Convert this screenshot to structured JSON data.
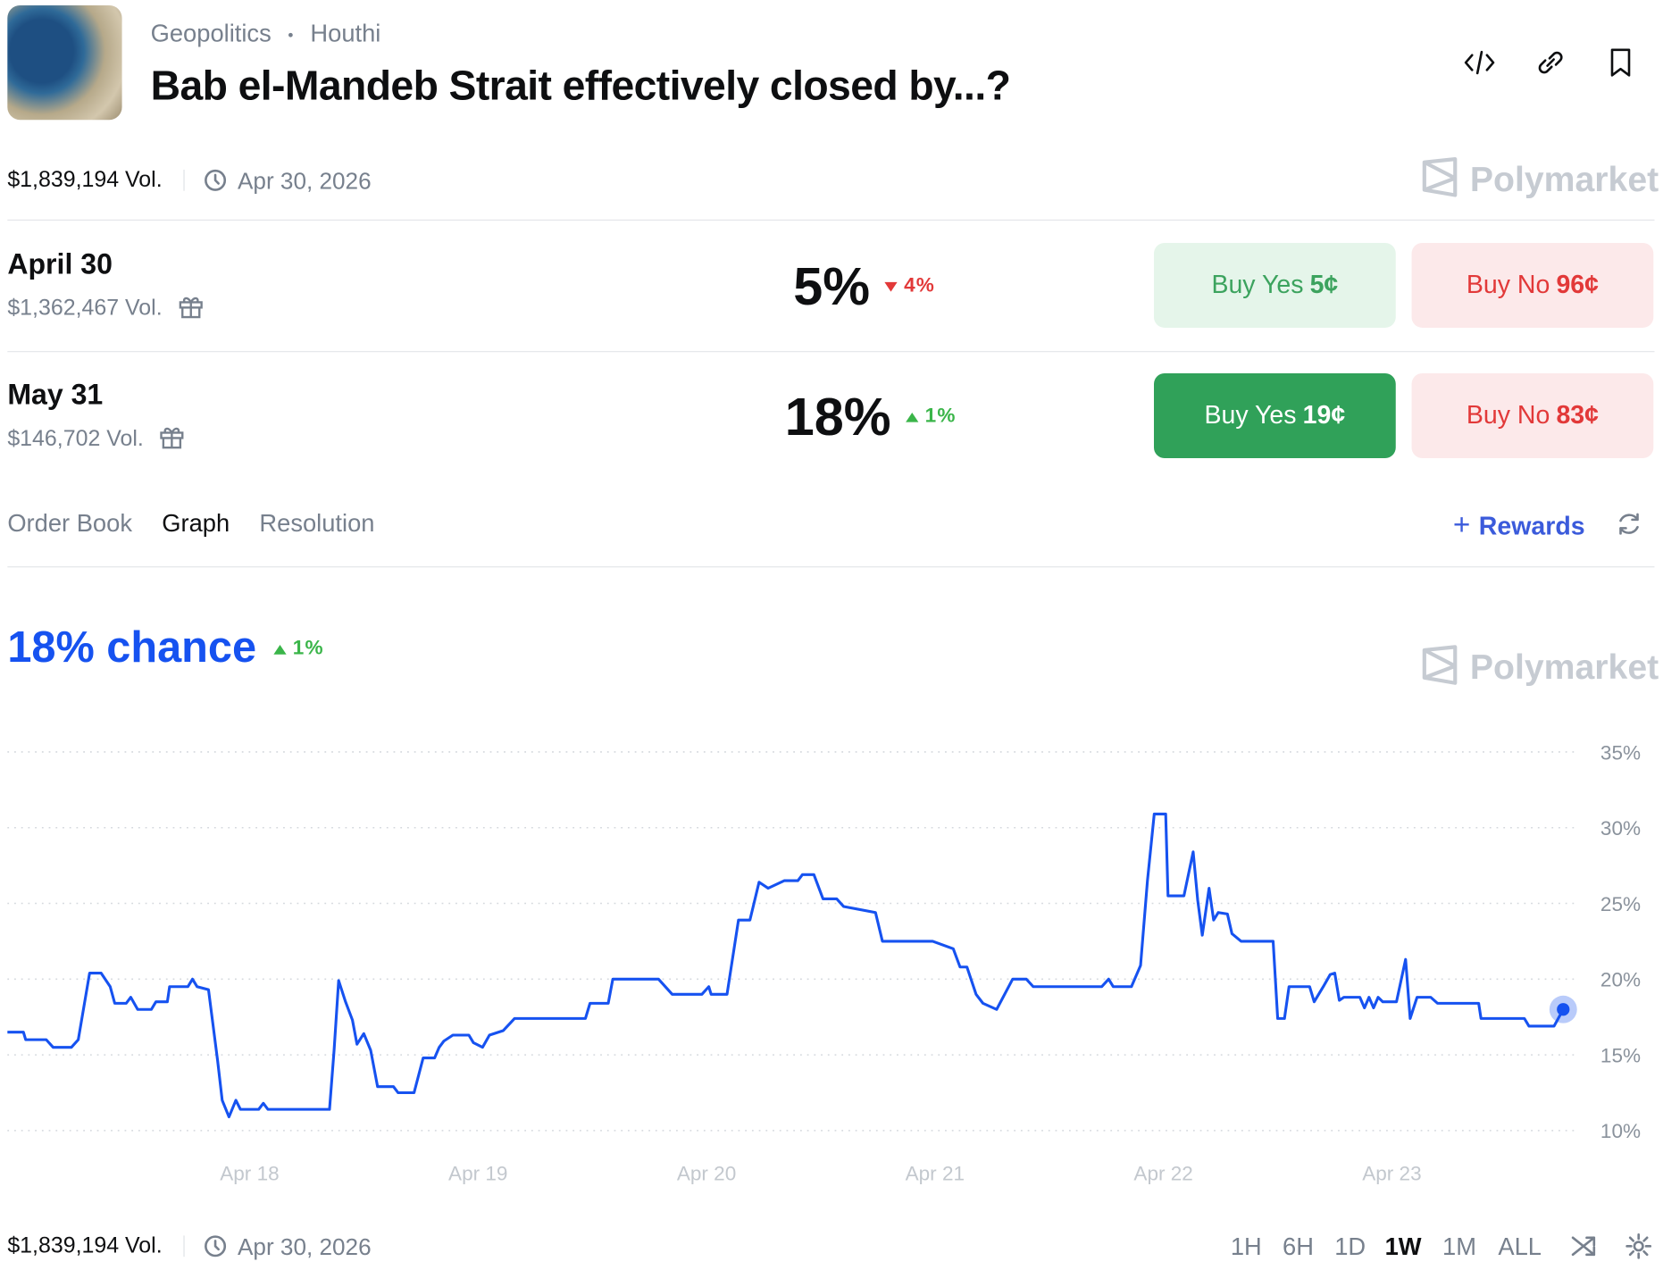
{
  "header": {
    "category": "Geopolitics",
    "tag": "Houthi",
    "title": "Bab el-Mandeb Strait effectively closed by...?",
    "volume": "$1,839,194 Vol.",
    "date": "Apr 30, 2026",
    "brand": "Polymarket"
  },
  "selected_market": 1,
  "markets": [
    {
      "name": "April 30",
      "volume": "$1,362,467 Vol.",
      "chance": "5%",
      "change": "4%",
      "direction": "down",
      "buy_yes": "Buy Yes",
      "yes_price": "5¢",
      "buy_no": "Buy No",
      "no_price": "96¢"
    },
    {
      "name": "May 31",
      "volume": "$146,702 Vol.",
      "chance": "18%",
      "change": "1%",
      "direction": "up",
      "buy_yes": "Buy Yes",
      "yes_price": "19¢",
      "buy_no": "Buy No",
      "no_price": "83¢"
    }
  ],
  "tabs": [
    "Order Book",
    "Graph",
    "Resolution"
  ],
  "active_tab": 1,
  "rewards": "Rewards",
  "chart_data": {
    "type": "line",
    "headline": "18% chance",
    "change": "1%",
    "direction": "up",
    "color": "#1652f0",
    "grid": true,
    "x": [
      16.94,
      17.01,
      17.02,
      17.11,
      17.14,
      17.22,
      17.25,
      17.3,
      17.35,
      17.39,
      17.41,
      17.46,
      17.48,
      17.51,
      17.57,
      17.59,
      17.64,
      17.65,
      17.73,
      17.75,
      17.77,
      17.82,
      17.86,
      17.88,
      17.91,
      17.94,
      17.96,
      18.04,
      18.06,
      18.08,
      18.35,
      18.37,
      18.39,
      18.42,
      18.45,
      18.47,
      18.5,
      18.53,
      18.56,
      18.63,
      18.65,
      18.72,
      18.76,
      18.81,
      18.83,
      18.85,
      18.89,
      18.96,
      18.98,
      19.02,
      19.05,
      19.11,
      19.16,
      19.47,
      19.49,
      19.57,
      19.59,
      19.79,
      19.85,
      19.98,
      20.01,
      20.02,
      20.09,
      20.14,
      20.19,
      20.23,
      20.27,
      20.34,
      20.4,
      20.42,
      20.47,
      20.51,
      20.57,
      20.6,
      20.74,
      20.77,
      20.99,
      21.08,
      21.11,
      21.14,
      21.18,
      21.21,
      21.27,
      21.34,
      21.4,
      21.43,
      21.73,
      21.76,
      21.78,
      21.86,
      21.9,
      21.93,
      21.96,
      22.01,
      22.02,
      22.09,
      22.13,
      22.15,
      22.17,
      22.2,
      22.22,
      22.24,
      22.28,
      22.3,
      22.34,
      22.48,
      22.5,
      22.53,
      22.55,
      22.64,
      22.66,
      22.7,
      22.73,
      22.75,
      22.77,
      22.79,
      22.86,
      22.88,
      22.9,
      22.92,
      22.94,
      22.96,
      23.02,
      23.06,
      23.08,
      23.11,
      23.17,
      23.2,
      23.38,
      23.39,
      23.58,
      23.6,
      23.71,
      23.75
    ],
    "values": [
      16.5,
      16.5,
      16.0,
      16.0,
      15.5,
      15.5,
      16.0,
      20.4,
      20.4,
      19.5,
      18.4,
      18.4,
      18.8,
      18.0,
      18.0,
      18.5,
      18.5,
      19.5,
      19.5,
      20.0,
      19.5,
      19.3,
      14.6,
      12.0,
      10.9,
      12.0,
      11.4,
      11.4,
      11.8,
      11.4,
      11.4,
      15.3,
      19.9,
      18.5,
      17.3,
      15.7,
      16.4,
      15.3,
      12.9,
      12.9,
      12.5,
      12.5,
      14.8,
      14.8,
      15.5,
      15.9,
      16.3,
      16.3,
      15.8,
      15.5,
      16.3,
      16.6,
      17.4,
      17.4,
      18.4,
      18.4,
      20.0,
      20.0,
      19.0,
      19.0,
      19.5,
      19.0,
      19.0,
      23.9,
      23.9,
      26.4,
      26.0,
      26.5,
      26.5,
      26.9,
      26.9,
      25.3,
      25.3,
      24.8,
      24.4,
      22.5,
      22.5,
      22.0,
      20.8,
      20.8,
      19.0,
      18.4,
      18.0,
      20.0,
      20.0,
      19.5,
      19.5,
      20.0,
      19.5,
      19.5,
      20.9,
      26.5,
      30.9,
      30.9,
      25.5,
      25.5,
      28.4,
      25.2,
      22.9,
      26.0,
      23.9,
      24.4,
      24.3,
      23.0,
      22.5,
      22.5,
      17.4,
      17.4,
      19.5,
      19.5,
      18.5,
      19.5,
      20.3,
      20.4,
      18.6,
      18.8,
      18.8,
      18.1,
      18.8,
      18.1,
      18.8,
      18.5,
      18.5,
      21.3,
      17.4,
      18.8,
      18.8,
      18.4,
      18.4,
      17.4,
      17.4,
      16.9,
      16.9,
      18.0
    ],
    "xlim": [
      16.94,
      23.82
    ],
    "ylim": [
      10,
      35
    ],
    "xticks": [
      {
        "value": 18,
        "label": "Apr 18"
      },
      {
        "value": 19,
        "label": "Apr 19"
      },
      {
        "value": 20,
        "label": "Apr 20"
      },
      {
        "value": 21,
        "label": "Apr 21"
      },
      {
        "value": 22,
        "label": "Apr 22"
      },
      {
        "value": 23,
        "label": "Apr 23"
      }
    ],
    "yticks": [
      {
        "value": 10,
        "label": "10%"
      },
      {
        "value": 15,
        "label": "15%"
      },
      {
        "value": 20,
        "label": "20%"
      },
      {
        "value": 25,
        "label": "25%"
      },
      {
        "value": 30,
        "label": "30%"
      },
      {
        "value": 35,
        "label": "35%"
      }
    ]
  },
  "ranges": [
    "1H",
    "6H",
    "1D",
    "1W",
    "1M",
    "ALL"
  ],
  "active_range": 3
}
